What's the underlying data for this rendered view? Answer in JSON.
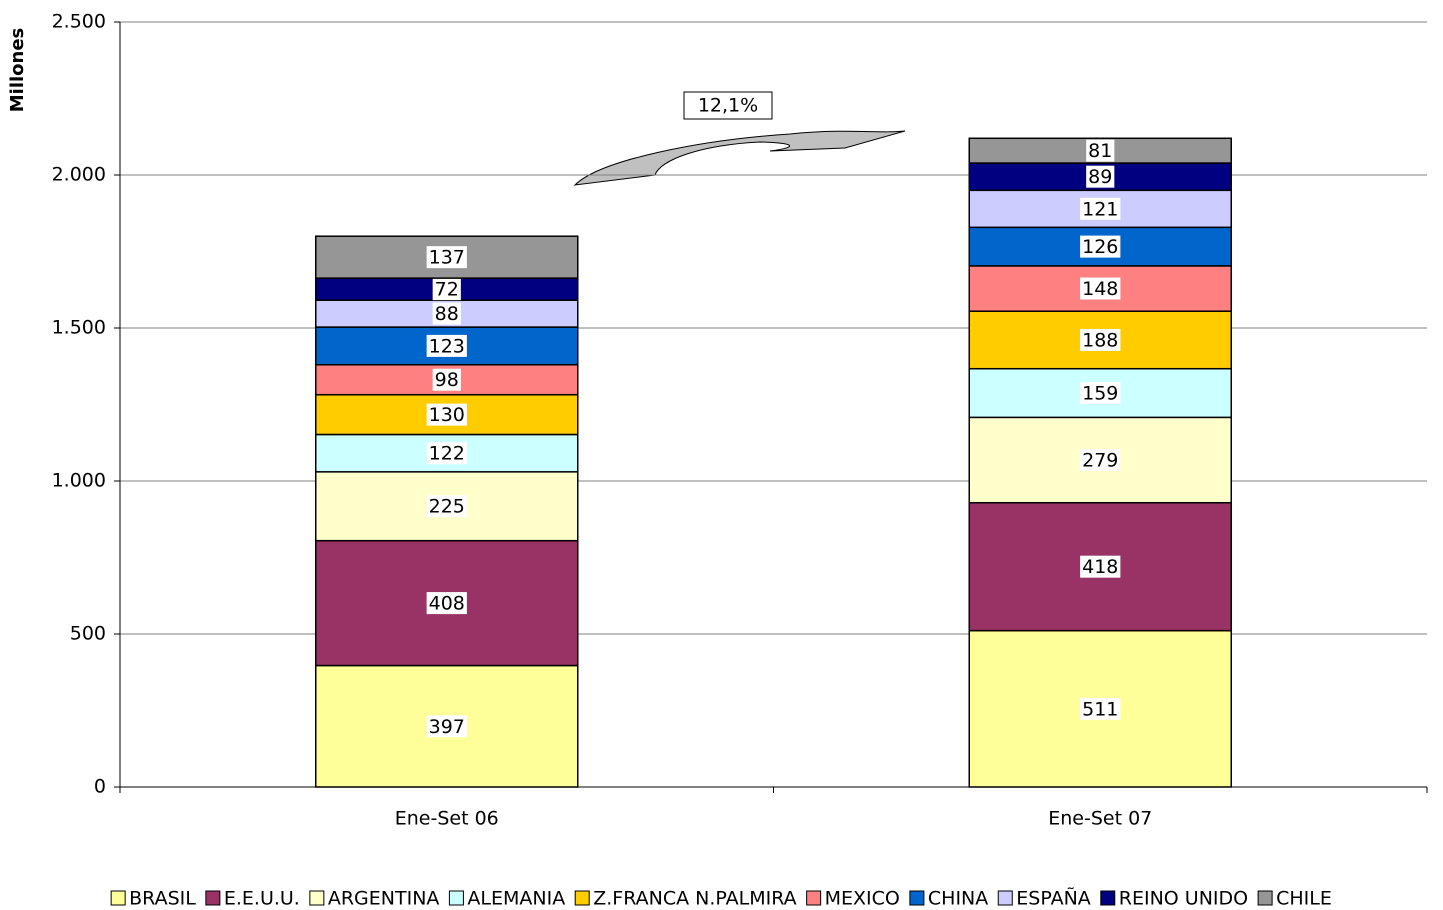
{
  "chart_data": {
    "type": "stacked_bar",
    "y_label": "Millones",
    "annotation": "12,1%",
    "categories": [
      "Ene-Set 06",
      "Ene-Set 07"
    ],
    "series": [
      {
        "name": "BRASIL",
        "color": "#ffff99",
        "values": [
          397,
          511
        ]
      },
      {
        "name": "E.E.U.U.",
        "color": "#993366",
        "values": [
          408,
          418
        ]
      },
      {
        "name": "ARGENTINA",
        "color": "#ffffcc",
        "values": [
          225,
          279
        ]
      },
      {
        "name": "ALEMANIA",
        "color": "#ccffff",
        "values": [
          122,
          159
        ]
      },
      {
        "name": "Z.FRANCA N.PALMIRA",
        "color": "#ffcc00",
        "values": [
          130,
          188
        ]
      },
      {
        "name": "MEXICO",
        "color": "#ff8080",
        "values": [
          98,
          148
        ]
      },
      {
        "name": "CHINA",
        "color": "#0066cc",
        "values": [
          123,
          126
        ]
      },
      {
        "name": "ESPAÑA",
        "color": "#ccccff",
        "values": [
          88,
          121
        ]
      },
      {
        "name": "REINO UNIDO",
        "color": "#000080",
        "values": [
          72,
          89
        ]
      },
      {
        "name": "CHILE",
        "color": "#969696",
        "values": [
          137,
          81
        ]
      }
    ],
    "ylim": [
      0,
      2500
    ],
    "yticks": [
      0,
      500,
      {
        "value": 1000,
        "label": "1.000"
      },
      {
        "value": 1500,
        "label": "1.500"
      },
      {
        "value": 2000,
        "label": "2.000"
      },
      {
        "value": 2500,
        "label": "2.500"
      }
    ],
    "grid": true,
    "legend": "bottom"
  }
}
